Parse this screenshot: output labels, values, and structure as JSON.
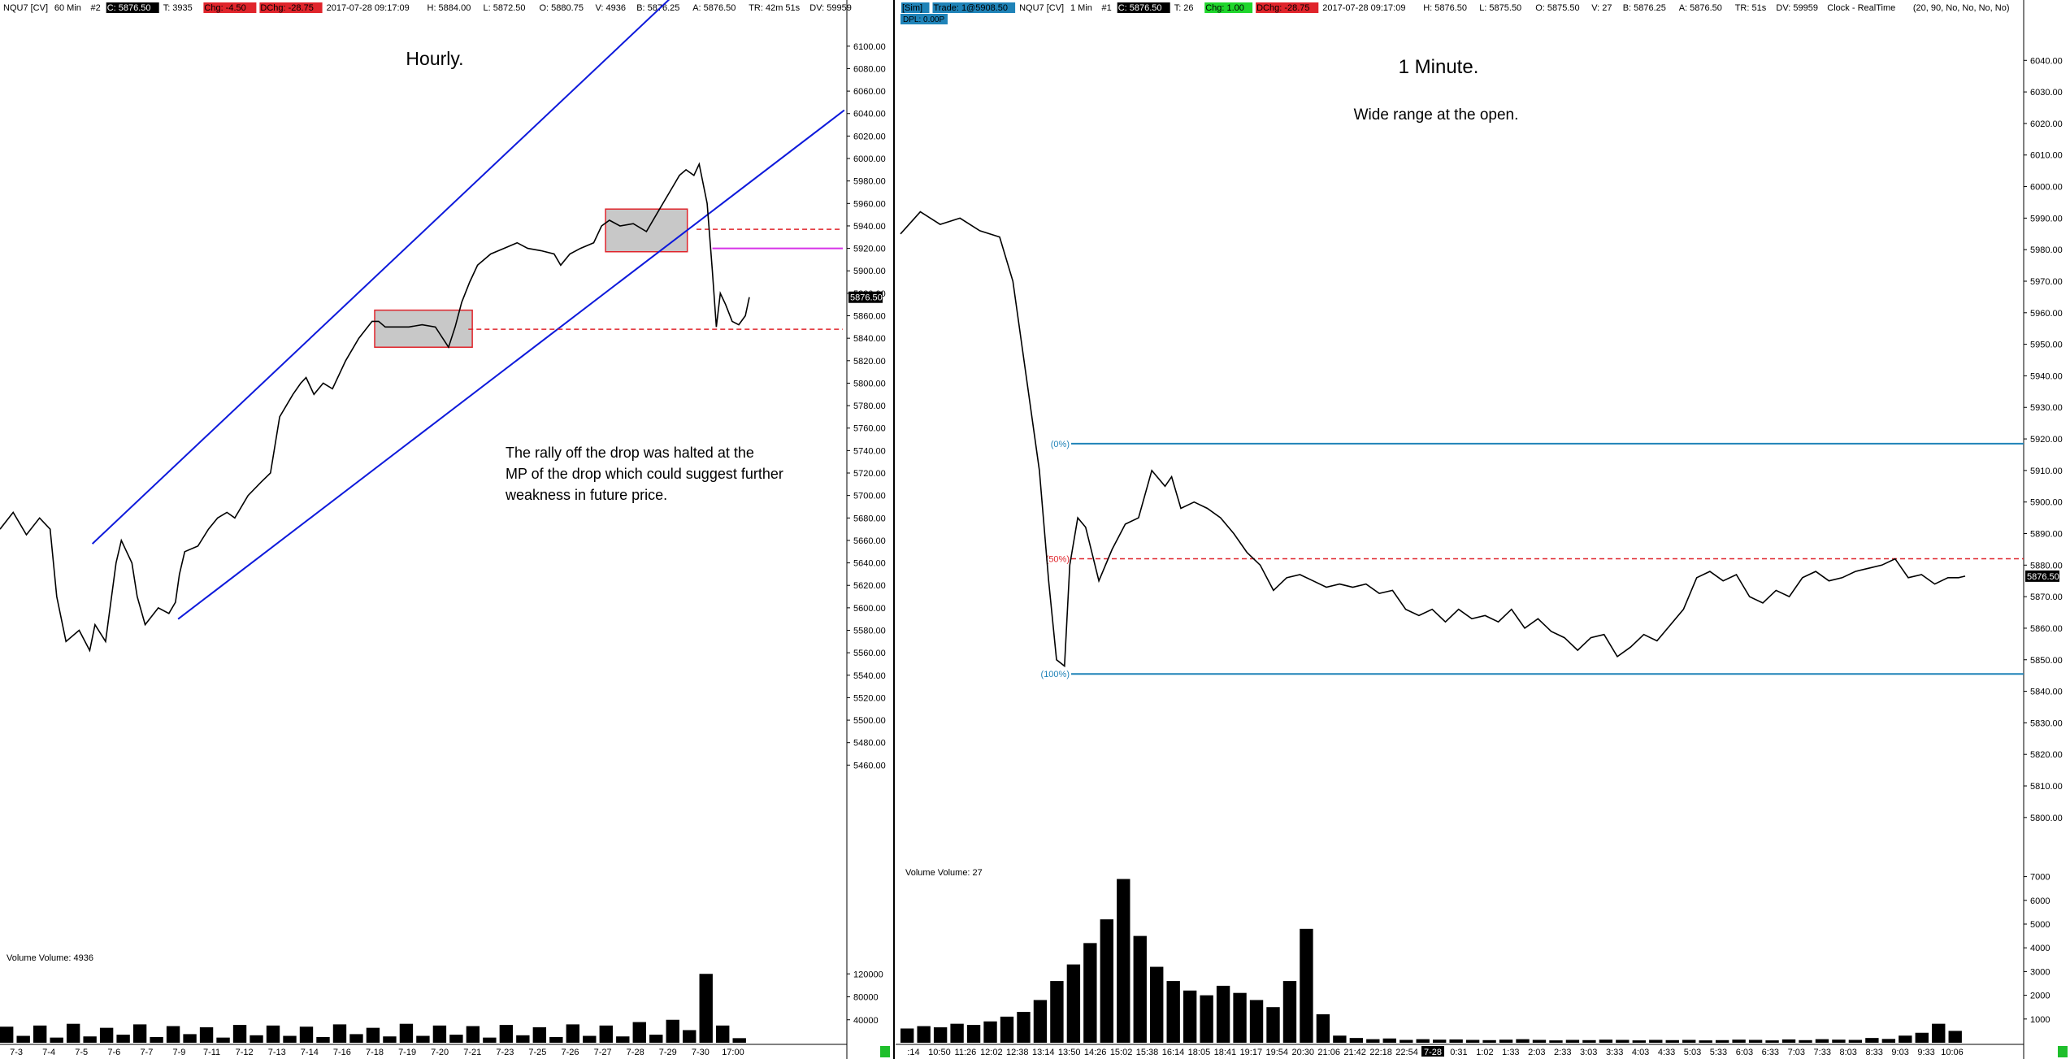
{
  "left": {
    "header": {
      "symbol": "NQU7 [CV]",
      "interval": "60 Min",
      "panel_no": "#2",
      "close": "C: 5876.50",
      "ticks": "T: 3935",
      "chg": "Chg: -4.50",
      "dchg": "DChg: -28.75",
      "datetime": "2017-07-28 09:17:09",
      "high": "H: 5884.00",
      "low": "L: 5872.50",
      "open": "O: 5880.75",
      "volume": "V: 4936",
      "bid": "B: 5876.25",
      "ask": "A: 5876.50",
      "tr": "TR: 42m 51s",
      "dv": "DV: 59959"
    },
    "title": "Hourly.",
    "annotation": "The rally off the drop was halted at the MP of the drop which could suggest further weakness in future price.",
    "price_label": "5876.50",
    "volume_label": "Volume  Volume: 4936",
    "volume_ticks": [
      "120000",
      "80000",
      "40000"
    ],
    "x_ticks": [
      "7-3",
      "7-4",
      "7-5",
      "7-6",
      "7-7",
      "7-9",
      "7-11",
      "7-12",
      "7-13",
      "7-14",
      "7-16",
      "7-18",
      "7-19",
      "7-20",
      "7-21",
      "7-23",
      "7-25",
      "7-26",
      "7-27",
      "7-28",
      "7-29",
      "7-30",
      "17:00"
    ]
  },
  "right": {
    "header": {
      "sim": "[Sim]",
      "trade": "Trade: 1@5908.50",
      "dpl": "DPL: 0.00P",
      "symbol": "NQU7 [CV]",
      "interval": "1 Min",
      "panel_no": "#1",
      "close": "C: 5876.50",
      "ticks": "T: 26",
      "chg": "Chg: 1.00",
      "dchg": "DChg: -28.75",
      "datetime": "2017-07-28 09:17:09",
      "high": "H: 5876.50",
      "low": "L: 5875.50",
      "open": "O: 5875.50",
      "volume": "V: 27",
      "bid": "B: 5876.25",
      "ask": "A: 5876.50",
      "tr": "TR: 51s",
      "dv": "DV: 59959",
      "clock": "Clock - RealTime",
      "params": "(20, 90, No, No, No, No)"
    },
    "title": "1 Minute.",
    "subtitle": "Wide range  at the open.",
    "fib_0": "(0%)",
    "fib_50": "(50%)",
    "fib_100": "(100%)",
    "price_label": "5876.50",
    "volume_label": "Volume  Volume: 27",
    "volume_ticks": [
      "7000",
      "6000",
      "5000",
      "4000",
      "3000",
      "2000",
      "1000"
    ],
    "x_ticks": [
      ":14",
      "10:50",
      "11:26",
      "12:02",
      "12:38",
      "13:14",
      "13:50",
      "14:26",
      "15:02",
      "15:38",
      "16:14",
      "18:05",
      "18:41",
      "19:17",
      "19:54",
      "20:30",
      "21:06",
      "21:42",
      "22:18",
      "22:54",
      "7-28",
      "0:31",
      "1:02",
      "1:33",
      "2:03",
      "2:33",
      "3:03",
      "3:33",
      "4:03",
      "4:33",
      "5:03",
      "5:33",
      "6:03",
      "6:33",
      "7:03",
      "7:33",
      "8:03",
      "8:33",
      "9:03",
      "9:33",
      "10:06"
    ]
  },
  "chart_data": [
    {
      "type": "line",
      "title": "Hourly.",
      "xlabel": "",
      "ylabel": "",
      "ylim": [
        5440,
        6110
      ],
      "y_ticks": [
        6100,
        6080,
        6060,
        6040,
        6020,
        6000,
        5980,
        5960,
        5940,
        5920,
        5900,
        5880,
        5860,
        5840,
        5820,
        5800,
        5780,
        5760,
        5740,
        5720,
        5700,
        5680,
        5660,
        5640,
        5620,
        5600,
        5580,
        5560,
        5540,
        5520,
        5500,
        5480,
        5460
      ],
      "x_ticks": [
        "7-3",
        "7-4",
        "7-5",
        "7-6",
        "7-7",
        "7-9",
        "7-11",
        "7-12",
        "7-13",
        "7-14",
        "7-16",
        "7-18",
        "7-19",
        "7-20",
        "7-21",
        "7-23",
        "7-25",
        "7-26",
        "7-27",
        "7-28",
        "7-29",
        "7-30",
        "17:00"
      ],
      "series": [
        {
          "x": [
            0,
            10,
            20,
            30,
            38,
            43,
            50,
            60,
            68,
            72,
            80,
            88,
            92,
            96,
            100,
            104,
            110,
            120,
            128,
            133,
            136,
            140,
            150,
            158,
            165,
            172,
            178,
            188,
            198,
            205,
            212,
            222,
            228,
            232,
            238,
            245,
            252,
            262,
            272,
            282,
            287,
            292,
            300,
            310,
            320,
            330,
            340,
            345,
            350,
            356,
            362,
            372,
            382,
            392,
            400,
            410,
            420,
            425,
            432,
            440,
            450,
            456,
            462,
            470,
            480,
            490,
            500,
            510,
            515,
            520,
            526,
            530,
            536,
            540,
            543,
            546,
            550,
            555,
            560,
            565,
            568
          ],
          "values": [
            5670,
            5685,
            5665,
            5680,
            5670,
            5610,
            5570,
            5580,
            5562,
            5585,
            5570,
            5640,
            5660,
            5650,
            5640,
            5610,
            5585,
            5600,
            5595,
            5605,
            5630,
            5650,
            5655,
            5670,
            5680,
            5685,
            5680,
            5700,
            5712,
            5720,
            5770,
            5790,
            5800,
            5805,
            5790,
            5800,
            5795,
            5820,
            5840,
            5855,
            5855,
            5850,
            5850,
            5850,
            5852,
            5850,
            5832,
            5850,
            5872,
            5890,
            5905,
            5915,
            5920,
            5925,
            5920,
            5918,
            5915,
            5905,
            5915,
            5920,
            5925,
            5940,
            5945,
            5940,
            5942,
            5935,
            5955,
            5975,
            5985,
            5990,
            5985,
            5995,
            5960,
            5900,
            5850,
            5880,
            5870,
            5855,
            5852,
            5860,
            5876.5
          ]
        }
      ],
      "horizontal_lines": [
        {
          "value": 5937,
          "style": "dashed",
          "color": "#e0242b"
        },
        {
          "value": 5848,
          "style": "dashed",
          "color": "#e0242b"
        },
        {
          "value": 5920,
          "style": "solid",
          "color": "#d633e8"
        }
      ],
      "channel_lines": [
        {
          "x": [
            70,
            578
          ],
          "values": [
            5657,
            6220
          ]
        },
        {
          "x": [
            135,
            640
          ],
          "values": [
            5590,
            6043
          ]
        }
      ],
      "boxes": [
        {
          "x": [
            284,
            358
          ],
          "values": [
            5832,
            5865
          ]
        },
        {
          "x": [
            459,
            521
          ],
          "values": [
            5917,
            5955
          ]
        }
      ],
      "volume": {
        "ylim": [
          0,
          160000
        ],
        "values": [
          28000,
          12000,
          30000,
          9000,
          33000,
          11000,
          26000,
          14000,
          32000,
          10000,
          29000,
          15000,
          27000,
          9000,
          31000,
          13000,
          30000,
          12000,
          28000,
          10000,
          32000,
          15000,
          26000,
          11000,
          33000,
          12000,
          30000,
          14000,
          29000,
          9000,
          31000,
          13000,
          27000,
          10000,
          32000,
          12000,
          30000,
          11000,
          36000,
          14000,
          40000,
          22000,
          120000,
          30000,
          8000
        ]
      }
    },
    {
      "type": "line",
      "title": "1 Minute.",
      "subtitle": "Wide range  at the open.",
      "xlabel": "",
      "ylabel": "",
      "ylim": [
        5793,
        6046
      ],
      "y_ticks": [
        6040,
        6030,
        6020,
        6010,
        6000,
        5990,
        5980,
        5970,
        5960,
        5950,
        5940,
        5930,
        5920,
        5910,
        5900,
        5890,
        5880,
        5870,
        5860,
        5850,
        5840,
        5830,
        5820,
        5810,
        5800
      ],
      "x_ticks": [
        ":14",
        "10:50",
        "11:26",
        "12:02",
        "12:38",
        "13:14",
        "13:50",
        "14:26",
        "15:02",
        "15:38",
        "16:14",
        "18:05",
        "18:41",
        "19:17",
        "19:54",
        "20:30",
        "21:06",
        "21:42",
        "22:18",
        "22:54",
        "7-28",
        "0:31",
        "1:02",
        "1:33",
        "2:03",
        "2:33",
        "3:03",
        "3:33",
        "4:03",
        "4:33",
        "5:03",
        "5:33",
        "6:03",
        "6:33",
        "7:03",
        "7:33",
        "8:03",
        "8:33",
        "9:03",
        "9:33",
        "10:06"
      ],
      "series": [
        {
          "x": [
            0,
            15,
            30,
            45,
            60,
            75,
            85,
            95,
            105,
            112,
            118,
            124,
            128,
            134,
            140,
            150,
            160,
            170,
            180,
            190,
            200,
            205,
            212,
            222,
            232,
            242,
            252,
            262,
            272,
            282,
            292,
            302,
            312,
            322,
            332,
            342,
            352,
            362,
            372,
            382,
            392,
            402,
            412,
            422,
            432,
            442,
            452,
            462,
            472,
            482,
            492,
            502,
            512,
            522,
            532,
            542,
            552,
            562,
            572,
            582,
            592,
            602,
            612,
            622,
            632,
            642,
            652,
            662,
            672,
            682,
            692,
            702,
            712,
            722,
            732,
            742,
            752,
            762,
            772,
            782,
            792,
            800,
            805
          ],
          "values": [
            5985,
            5992,
            5988,
            5990,
            5986,
            5984,
            5970,
            5940,
            5910,
            5875,
            5850,
            5848,
            5880,
            5895,
            5892,
            5875,
            5885,
            5893,
            5895,
            5910,
            5905,
            5908,
            5898,
            5900,
            5898,
            5895,
            5890,
            5884,
            5880,
            5872,
            5876,
            5877,
            5875,
            5873,
            5874,
            5873,
            5874,
            5871,
            5872,
            5866,
            5864,
            5866,
            5862,
            5866,
            5863,
            5864,
            5862,
            5866,
            5860,
            5863,
            5859,
            5857,
            5853,
            5857,
            5858,
            5851,
            5854,
            5858,
            5856,
            5861,
            5866,
            5876,
            5878,
            5875,
            5877,
            5870,
            5868,
            5872,
            5870,
            5876,
            5878,
            5875,
            5876,
            5878,
            5879,
            5880,
            5882,
            5876,
            5877,
            5874,
            5876,
            5876,
            5876.5
          ]
        }
      ],
      "horizontal_lines": [
        {
          "label": "(0%)",
          "value": 5918.5,
          "style": "solid",
          "color": "#1f83b8"
        },
        {
          "label": "(50%)",
          "value": 5882,
          "style": "dashed",
          "color": "#e0242b"
        },
        {
          "label": "(100%)",
          "value": 5845.5,
          "style": "solid",
          "color": "#1f83b8"
        }
      ],
      "volume": {
        "ylim": [
          0,
          7500
        ],
        "values": [
          600,
          700,
          650,
          800,
          750,
          900,
          1100,
          1300,
          1800,
          2600,
          3300,
          4200,
          5200,
          6900,
          4500,
          3200,
          2600,
          2200,
          2000,
          2400,
          2100,
          1800,
          1500,
          2600,
          4800,
          1200,
          300,
          200,
          150,
          180,
          120,
          150,
          130,
          140,
          120,
          110,
          130,
          150,
          120,
          100,
          120,
          110,
          130,
          120,
          100,
          120,
          110,
          120,
          100,
          110,
          130,
          120,
          100,
          140,
          110,
          150,
          130,
          120,
          200,
          160,
          300,
          420,
          800,
          500
        ]
      }
    }
  ]
}
